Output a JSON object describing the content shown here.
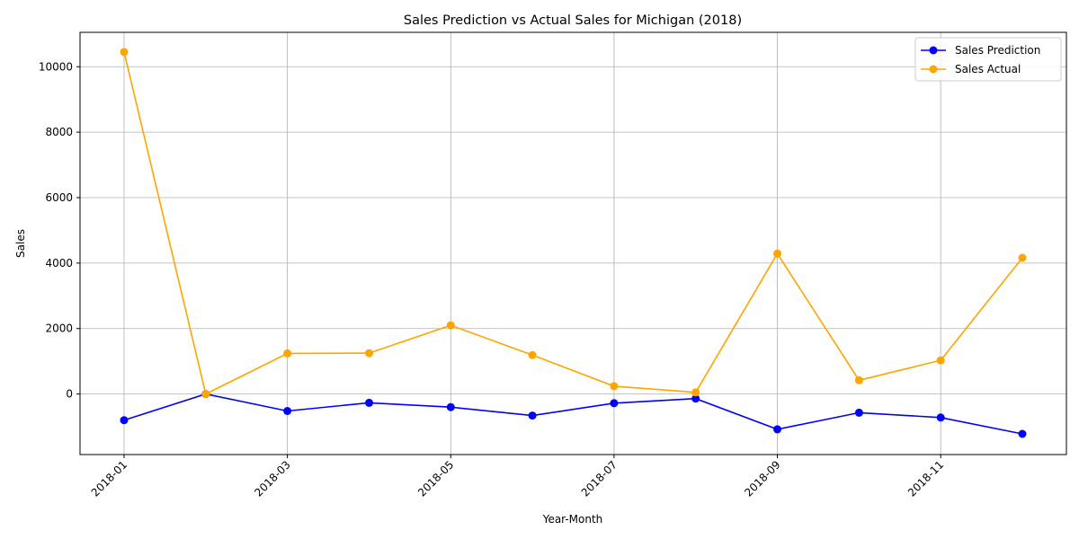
{
  "chart_data": {
    "type": "line",
    "title": "Sales Prediction vs Actual Sales for Michigan (2018)",
    "xlabel": "Year-Month",
    "ylabel": "Sales",
    "x": [
      "2018-01",
      "2018-02",
      "2018-03",
      "2018-04",
      "2018-05",
      "2018-06",
      "2018-07",
      "2018-08",
      "2018-09",
      "2018-10",
      "2018-11",
      "2018-12"
    ],
    "xticks": [
      "2018-01",
      "2018-03",
      "2018-05",
      "2018-07",
      "2018-09",
      "2018-11"
    ],
    "yticks": [
      0,
      2000,
      4000,
      6000,
      8000,
      10000
    ],
    "ylim": [
      -1850,
      11050
    ],
    "grid": true,
    "legend_position": "top-right",
    "series": [
      {
        "name": "Sales Prediction",
        "color": "#0000ff",
        "values": [
          -800,
          0,
          -520,
          -270,
          -400,
          -660,
          -280,
          -140,
          -1080,
          -570,
          -720,
          -1220
        ]
      },
      {
        "name": "Sales Actual",
        "color": "#ffa500",
        "values": [
          10450,
          0,
          1240,
          1250,
          2100,
          1190,
          240,
          50,
          4290,
          420,
          1030,
          4160
        ]
      }
    ]
  }
}
